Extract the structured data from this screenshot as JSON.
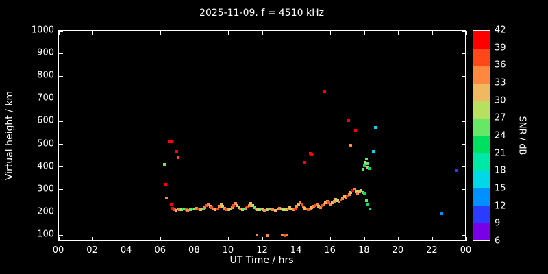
{
  "chart_data": {
    "type": "scatter",
    "title": "2025-11-09. f = 4510 kHz",
    "xlabel": "UT Time / hrs",
    "ylabel": "Virtual height / km",
    "xlim": [
      0,
      24
    ],
    "ylim": [
      100,
      1000
    ],
    "grid": false,
    "background": "#000000",
    "xticks": {
      "values": [
        0,
        2,
        4,
        6,
        8,
        10,
        12,
        14,
        16,
        18,
        20,
        22,
        24
      ],
      "labels": [
        "00",
        "02",
        "04",
        "06",
        "08",
        "10",
        "12",
        "14",
        "16",
        "18",
        "20",
        "22",
        "00"
      ]
    },
    "yticks": {
      "values": [
        100,
        200,
        300,
        400,
        500,
        600,
        700,
        800,
        900,
        1000
      ],
      "labels": [
        "100",
        "200",
        "300",
        "400",
        "500",
        "600",
        "700",
        "800",
        "900",
        "1000"
      ]
    },
    "colorbar": {
      "label": "SNR / dB",
      "ticks": [
        6,
        9,
        12,
        15,
        18,
        21,
        24,
        27,
        30,
        33,
        36,
        39,
        42
      ],
      "min": 6,
      "max": 42,
      "segment_colors_bottom_to_top": [
        "#7a00e6",
        "#2a3cff",
        "#0090ff",
        "#00d8e8",
        "#00e8a8",
        "#00e060",
        "#66e866",
        "#b8e060",
        "#f0b860",
        "#ff8840",
        "#ff4818",
        "#ff0000"
      ]
    },
    "points_format": [
      "ut_hour",
      "virtual_height_km",
      "snr_db"
    ],
    "points": [
      [
        6.2,
        410,
        24
      ],
      [
        6.3,
        325,
        40
      ],
      [
        6.35,
        262,
        33
      ],
      [
        6.5,
        510,
        40
      ],
      [
        6.62,
        512,
        40
      ],
      [
        6.6,
        235,
        40
      ],
      [
        6.95,
        470,
        40
      ],
      [
        7.02,
        440,
        36
      ],
      [
        6.7,
        218,
        40
      ],
      [
        6.8,
        212,
        36
      ],
      [
        6.9,
        210,
        30
      ],
      [
        7.0,
        214,
        24
      ],
      [
        7.1,
        211,
        33
      ],
      [
        7.2,
        213,
        27
      ],
      [
        7.3,
        216,
        21
      ],
      [
        7.4,
        214,
        24
      ],
      [
        7.5,
        212,
        36
      ],
      [
        7.6,
        210,
        33
      ],
      [
        7.75,
        212,
        24
      ],
      [
        7.9,
        214,
        21
      ],
      [
        8.0,
        216,
        27
      ],
      [
        8.1,
        219,
        33
      ],
      [
        8.2,
        216,
        36
      ],
      [
        8.35,
        212,
        30
      ],
      [
        8.5,
        216,
        24
      ],
      [
        8.6,
        222,
        33
      ],
      [
        8.7,
        230,
        36
      ],
      [
        8.8,
        236,
        33
      ],
      [
        8.9,
        228,
        30
      ],
      [
        9.0,
        220,
        36
      ],
      [
        9.1,
        215,
        33
      ],
      [
        9.2,
        212,
        30
      ],
      [
        9.3,
        216,
        36
      ],
      [
        9.45,
        226,
        33
      ],
      [
        9.55,
        236,
        30
      ],
      [
        9.65,
        228,
        27
      ],
      [
        9.75,
        218,
        33
      ],
      [
        9.85,
        212,
        36
      ],
      [
        10.0,
        211,
        30
      ],
      [
        10.1,
        214,
        27
      ],
      [
        10.2,
        221,
        33
      ],
      [
        10.3,
        231,
        36
      ],
      [
        10.4,
        238,
        33
      ],
      [
        10.5,
        230,
        30
      ],
      [
        10.6,
        222,
        27
      ],
      [
        10.7,
        216,
        33
      ],
      [
        10.8,
        212,
        30
      ],
      [
        10.9,
        214,
        24
      ],
      [
        11.0,
        218,
        33
      ],
      [
        11.1,
        223,
        36
      ],
      [
        11.2,
        231,
        33
      ],
      [
        11.3,
        238,
        30
      ],
      [
        11.4,
        230,
        27
      ],
      [
        11.5,
        221,
        24
      ],
      [
        11.6,
        215,
        33
      ],
      [
        11.7,
        212,
        30
      ],
      [
        11.8,
        213,
        27
      ],
      [
        11.9,
        215,
        24
      ],
      [
        12.0,
        212,
        30
      ],
      [
        12.1,
        210,
        33
      ],
      [
        12.25,
        212,
        30
      ],
      [
        12.4,
        216,
        24
      ],
      [
        12.5,
        214,
        30
      ],
      [
        12.6,
        211,
        33
      ],
      [
        12.75,
        210,
        30
      ],
      [
        12.9,
        214,
        30
      ],
      [
        13.0,
        218,
        33
      ],
      [
        13.1,
        214,
        30
      ],
      [
        13.25,
        211,
        27
      ],
      [
        13.4,
        213,
        30
      ],
      [
        13.5,
        216,
        33
      ],
      [
        13.6,
        220,
        30
      ],
      [
        13.7,
        215,
        27
      ],
      [
        13.8,
        212,
        33
      ],
      [
        13.9,
        216,
        36
      ],
      [
        14.0,
        226,
        33
      ],
      [
        14.1,
        236,
        30
      ],
      [
        14.2,
        241,
        33
      ],
      [
        14.3,
        233,
        36
      ],
      [
        14.4,
        225,
        33
      ],
      [
        14.5,
        219,
        30
      ],
      [
        14.6,
        214,
        33
      ],
      [
        14.7,
        212,
        36
      ],
      [
        14.8,
        216,
        33
      ],
      [
        14.9,
        221,
        30
      ],
      [
        15.0,
        226,
        33
      ],
      [
        15.1,
        231,
        36
      ],
      [
        15.2,
        236,
        33
      ],
      [
        15.3,
        228,
        30
      ],
      [
        15.4,
        222,
        33
      ],
      [
        15.5,
        229,
        36
      ],
      [
        15.6,
        236,
        33
      ],
      [
        15.7,
        243,
        30
      ],
      [
        15.8,
        249,
        33
      ],
      [
        15.9,
        241,
        36
      ],
      [
        16.0,
        236,
        33
      ],
      [
        16.1,
        241,
        30
      ],
      [
        16.2,
        248,
        33
      ],
      [
        16.3,
        256,
        30
      ],
      [
        16.4,
        250,
        27
      ],
      [
        16.5,
        246,
        33
      ],
      [
        16.6,
        253,
        36
      ],
      [
        16.7,
        261,
        33
      ],
      [
        16.8,
        268,
        30
      ],
      [
        16.9,
        262,
        33
      ],
      [
        17.0,
        271,
        36
      ],
      [
        17.1,
        279,
        33
      ],
      [
        17.2,
        287,
        30
      ],
      [
        17.3,
        296,
        40
      ],
      [
        17.4,
        301,
        33
      ],
      [
        17.5,
        290,
        27
      ],
      [
        17.6,
        283,
        33
      ],
      [
        17.7,
        291,
        30
      ],
      [
        17.8,
        296,
        27
      ],
      [
        17.9,
        286,
        24
      ],
      [
        18.0,
        280,
        21
      ],
      [
        18.1,
        250,
        24
      ],
      [
        18.2,
        235,
        21
      ],
      [
        18.3,
        215,
        18
      ],
      [
        11.65,
        100,
        33
      ],
      [
        12.3,
        96,
        33
      ],
      [
        13.15,
        100,
        33
      ],
      [
        13.3,
        98,
        36
      ],
      [
        13.45,
        100,
        33
      ],
      [
        14.45,
        420,
        40
      ],
      [
        14.8,
        460,
        40
      ],
      [
        14.87,
        452,
        40
      ],
      [
        15.65,
        730,
        40
      ],
      [
        17.05,
        605,
        40
      ],
      [
        17.2,
        495,
        33
      ],
      [
        17.45,
        560,
        40
      ],
      [
        17.9,
        390,
        24
      ],
      [
        18.0,
        405,
        21
      ],
      [
        18.05,
        420,
        27
      ],
      [
        18.1,
        435,
        24
      ],
      [
        18.15,
        400,
        30
      ],
      [
        18.2,
        415,
        24
      ],
      [
        18.28,
        392,
        21
      ],
      [
        18.5,
        470,
        15
      ],
      [
        18.65,
        575,
        15
      ],
      [
        22.5,
        195,
        12
      ],
      [
        23.4,
        385,
        9
      ]
    ]
  }
}
